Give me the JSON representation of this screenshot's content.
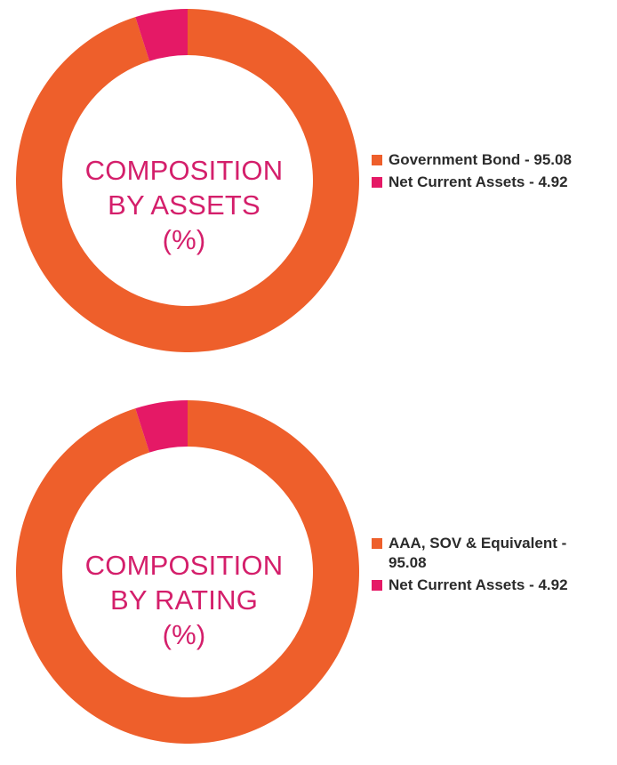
{
  "colors": {
    "primary": "#ee5f2b",
    "secondary": "#e51966",
    "title": "#d41f6b"
  },
  "chart_data": [
    {
      "type": "pie",
      "title": "COMPOSITION BY ASSETS (%)",
      "title_lines": [
        "COMPOSITION",
        "BY ASSETS",
        "(%)"
      ],
      "slices": [
        {
          "label": "Government Bond - 95.08",
          "value": 95.08,
          "color": "#ee5f2b"
        },
        {
          "label": "Net Current Assets - 4.92",
          "value": 4.92,
          "color": "#e51966"
        }
      ],
      "legend_position": "right"
    },
    {
      "type": "pie",
      "title": "COMPOSITION BY RATING (%)",
      "title_lines": [
        "COMPOSITION",
        "BY RATING",
        "(%)"
      ],
      "slices": [
        {
          "label": "AAA, SOV & Equivalent - 95.08",
          "value": 95.08,
          "color": "#ee5f2b"
        },
        {
          "label": "Net Current Assets - 4.92",
          "value": 4.92,
          "color": "#e51966"
        }
      ],
      "legend_position": "right"
    }
  ]
}
